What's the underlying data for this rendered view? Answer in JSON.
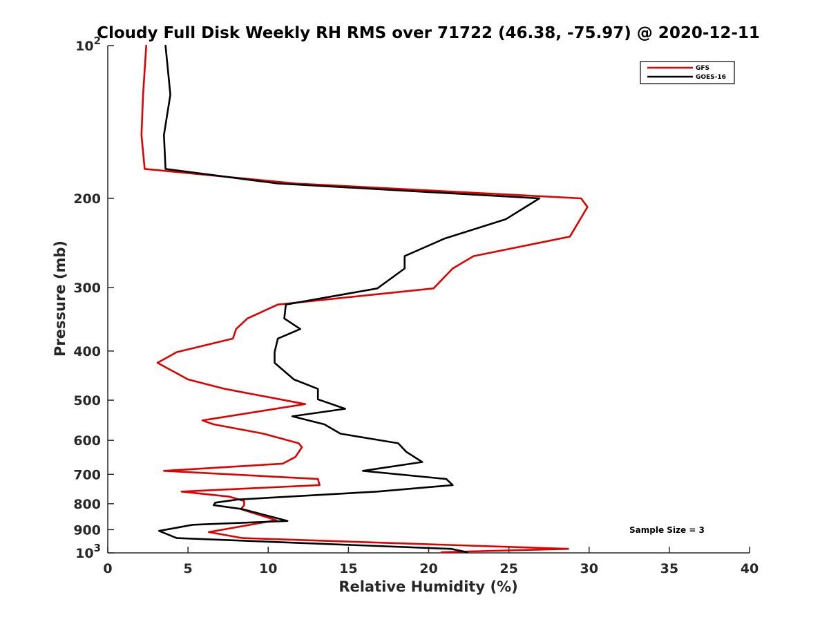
{
  "chart_data": {
    "type": "line",
    "title": "Cloudy Full Disk Weekly RH RMS over 71722 (46.38, -75.97) @ 2020-12-11",
    "xlabel": "Relative Humidity (%)",
    "ylabel": "Pressure (mb)",
    "xlim": [
      0,
      40
    ],
    "ylim": [
      100,
      1000
    ],
    "yscale": "log",
    "y_reversed": true,
    "x_ticks": [
      "0",
      "5",
      "10",
      "15",
      "20",
      "25",
      "30",
      "35",
      "40"
    ],
    "y_ticks": [
      {
        "value": 100,
        "base": "10",
        "exp": "2"
      },
      {
        "value": 200,
        "label": "200"
      },
      {
        "value": 300,
        "label": "300"
      },
      {
        "value": 400,
        "label": "400"
      },
      {
        "value": 500,
        "label": "500"
      },
      {
        "value": 600,
        "label": "600"
      },
      {
        "value": 700,
        "label": "700"
      },
      {
        "value": 800,
        "label": "800"
      },
      {
        "value": 900,
        "label": "900"
      },
      {
        "value": 1000,
        "base": "10",
        "exp": "3"
      }
    ],
    "legend_position": "top-right",
    "annotation": "Sample Size = 3",
    "series": [
      {
        "name": "GFS",
        "color": "#e00000",
        "points": [
          [
            2.4,
            100
          ],
          [
            2.2,
            125
          ],
          [
            2.1,
            150
          ],
          [
            2.3,
            175
          ],
          [
            11.7,
            187
          ],
          [
            29.5,
            200
          ],
          [
            29.9,
            208
          ],
          [
            28.8,
            238
          ],
          [
            22.8,
            260
          ],
          [
            21.5,
            275
          ],
          [
            20.3,
            301
          ],
          [
            10.6,
            324
          ],
          [
            8.7,
            345
          ],
          [
            8.0,
            362
          ],
          [
            7.8,
            378
          ],
          [
            4.3,
            402
          ],
          [
            3.1,
            422
          ],
          [
            5.0,
            455
          ],
          [
            7.3,
            475
          ],
          [
            12.3,
            509
          ],
          [
            5.9,
            548
          ],
          [
            6.6,
            558
          ],
          [
            9.7,
            582
          ],
          [
            11.9,
            608
          ],
          [
            12.1,
            619
          ],
          [
            11.7,
            647
          ],
          [
            10.9,
            667
          ],
          [
            3.5,
            689
          ],
          [
            13.1,
            715
          ],
          [
            13.2,
            735
          ],
          [
            4.6,
            757
          ],
          [
            7.6,
            775
          ],
          [
            8.5,
            790
          ],
          [
            8.5,
            805
          ],
          [
            8.3,
            820
          ],
          [
            10.5,
            862
          ],
          [
            6.3,
            910
          ],
          [
            8.4,
            935
          ],
          [
            28.7,
            982
          ],
          [
            20.8,
            997
          ]
        ]
      },
      {
        "name": "GOES-16",
        "color": "#000000",
        "points": [
          [
            3.6,
            100
          ],
          [
            3.9,
            125
          ],
          [
            3.5,
            150
          ],
          [
            3.6,
            175
          ],
          [
            10.6,
            187
          ],
          [
            26.9,
            200
          ],
          [
            24.8,
            220
          ],
          [
            21.0,
            240
          ],
          [
            18.5,
            260
          ],
          [
            18.5,
            275
          ],
          [
            16.8,
            301
          ],
          [
            11.1,
            324
          ],
          [
            11.0,
            345
          ],
          [
            12.0,
            362
          ],
          [
            10.6,
            378
          ],
          [
            10.4,
            402
          ],
          [
            10.4,
            422
          ],
          [
            11.6,
            455
          ],
          [
            13.1,
            475
          ],
          [
            13.1,
            498
          ],
          [
            14.8,
            520
          ],
          [
            11.5,
            538
          ],
          [
            13.5,
            558
          ],
          [
            14.5,
            582
          ],
          [
            18.1,
            608
          ],
          [
            18.6,
            632
          ],
          [
            19.6,
            662
          ],
          [
            15.9,
            689
          ],
          [
            21.1,
            715
          ],
          [
            21.5,
            735
          ],
          [
            16.8,
            757
          ],
          [
            8.1,
            785
          ],
          [
            6.7,
            796
          ],
          [
            6.6,
            805
          ],
          [
            8.4,
            820
          ],
          [
            11.2,
            865
          ],
          [
            5.3,
            880
          ],
          [
            3.2,
            905
          ],
          [
            4.3,
            935
          ],
          [
            21.4,
            982
          ],
          [
            22.4,
            997
          ]
        ]
      }
    ]
  }
}
